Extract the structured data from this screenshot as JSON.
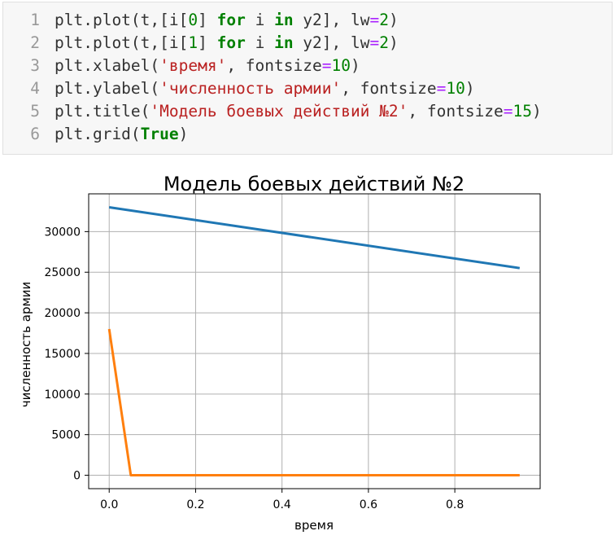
{
  "notebook": {
    "cell": {
      "lines": [
        {
          "number": "1",
          "tokens": [
            {
              "t": "plt.plot(t,[i[",
              "c": "fn"
            },
            {
              "t": "0",
              "c": "num"
            },
            {
              "t": "] ",
              "c": "fn"
            },
            {
              "t": "for",
              "c": "kw"
            },
            {
              "t": " i ",
              "c": "fn"
            },
            {
              "t": "in",
              "c": "kw"
            },
            {
              "t": " y2], lw",
              "c": "fn"
            },
            {
              "t": "=",
              "c": "op"
            },
            {
              "t": "2",
              "c": "num"
            },
            {
              "t": ")",
              "c": "fn"
            }
          ]
        },
        {
          "number": "2",
          "tokens": [
            {
              "t": "plt.plot(t,[i[",
              "c": "fn"
            },
            {
              "t": "1",
              "c": "num"
            },
            {
              "t": "] ",
              "c": "fn"
            },
            {
              "t": "for",
              "c": "kw"
            },
            {
              "t": " i ",
              "c": "fn"
            },
            {
              "t": "in",
              "c": "kw"
            },
            {
              "t": " y2], lw",
              "c": "fn"
            },
            {
              "t": "=",
              "c": "op"
            },
            {
              "t": "2",
              "c": "num"
            },
            {
              "t": ")",
              "c": "fn"
            }
          ]
        },
        {
          "number": "3",
          "tokens": [
            {
              "t": "plt.xlabel(",
              "c": "fn"
            },
            {
              "t": "'время'",
              "c": "str"
            },
            {
              "t": ", fontsize",
              "c": "fn"
            },
            {
              "t": "=",
              "c": "op"
            },
            {
              "t": "10",
              "c": "num"
            },
            {
              "t": ")",
              "c": "fn"
            }
          ]
        },
        {
          "number": "4",
          "tokens": [
            {
              "t": "plt.ylabel(",
              "c": "fn"
            },
            {
              "t": "'численность армии'",
              "c": "str"
            },
            {
              "t": ", fontsize",
              "c": "fn"
            },
            {
              "t": "=",
              "c": "op"
            },
            {
              "t": "10",
              "c": "num"
            },
            {
              "t": ")",
              "c": "fn"
            }
          ]
        },
        {
          "number": "5",
          "tokens": [
            {
              "t": "plt.title(",
              "c": "fn"
            },
            {
              "t": "'Модель боевых действий №2'",
              "c": "str"
            },
            {
              "t": ", fontsize",
              "c": "fn"
            },
            {
              "t": "=",
              "c": "op"
            },
            {
              "t": "15",
              "c": "num"
            },
            {
              "t": ")",
              "c": "fn"
            }
          ]
        },
        {
          "number": "6",
          "tokens": [
            {
              "t": "plt.grid(",
              "c": "fn"
            },
            {
              "t": "True",
              "c": "kw"
            },
            {
              "t": ")",
              "c": "fn"
            }
          ]
        }
      ]
    }
  },
  "chart_data": {
    "type": "line",
    "title": "Модель боевых действий №2",
    "xlabel": "время",
    "ylabel": "численность армии",
    "xlim": [
      -0.0475,
      0.9975
    ],
    "ylim": [
      -1650,
      34650
    ],
    "xticks": [
      0.0,
      0.2,
      0.4,
      0.6,
      0.8
    ],
    "xtick_labels": [
      "0.0",
      "0.2",
      "0.4",
      "0.6",
      "0.8"
    ],
    "yticks": [
      0,
      5000,
      10000,
      15000,
      20000,
      25000,
      30000
    ],
    "ytick_labels": [
      "0",
      "5000",
      "10000",
      "15000",
      "20000",
      "25000",
      "30000"
    ],
    "grid": true,
    "series": [
      {
        "color": "#1f77b4",
        "x": [
          0.0,
          0.95
        ],
        "y": [
          33000,
          25500
        ]
      },
      {
        "color": "#ff7f0e",
        "x": [
          0.0,
          0.05,
          0.95
        ],
        "y": [
          18000,
          0,
          0
        ]
      }
    ]
  }
}
